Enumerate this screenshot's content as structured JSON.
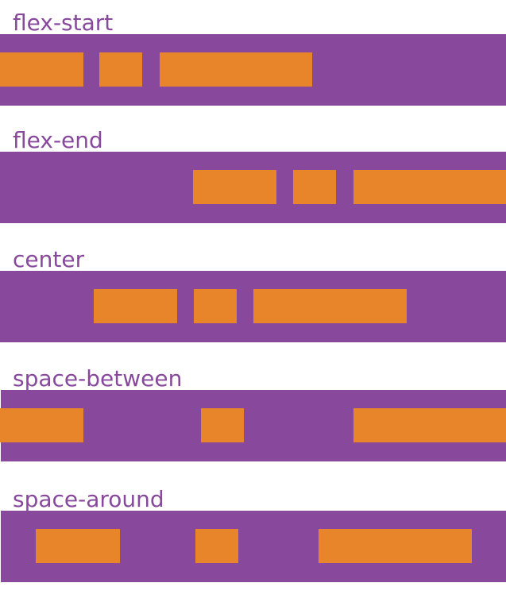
{
  "colors": {
    "container": "#88499c",
    "item": "#e8842a",
    "label": "#88499c"
  },
  "rows": [
    {
      "label": "flex-start"
    },
    {
      "label": "flex-end"
    },
    {
      "label": "center"
    },
    {
      "label": "space-between"
    },
    {
      "label": "space-around"
    }
  ]
}
